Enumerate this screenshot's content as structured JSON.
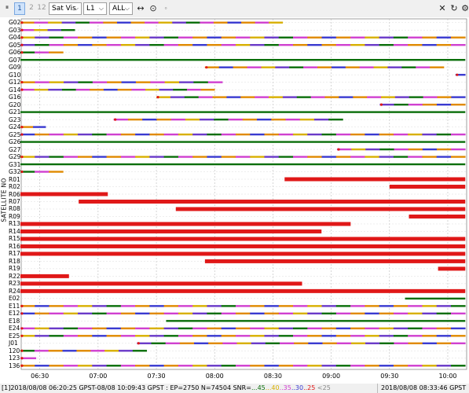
{
  "toolbar": {
    "pause": "⏸",
    "btn1": "1",
    "btn2": "2",
    "btn12": "12",
    "plot_type": "Sat Vis",
    "freq": "L1",
    "sat_filter": "ALL",
    "icons": [
      "fit-width-icon",
      "center-target-icon",
      "dot-icon",
      "close-icon",
      "refresh-icon",
      "gear-icon"
    ]
  },
  "chart": {
    "ylabel": "SATELLITE NO",
    "x_ticks": [
      "06:30",
      "07:00",
      "07:30",
      "08:00",
      "08:30",
      "09:00",
      "09:30",
      "10:00"
    ],
    "satellites": [
      "G02",
      "G03",
      "G04",
      "G05",
      "G06",
      "G07",
      "G09",
      "G10",
      "G12",
      "G14",
      "G16",
      "G20",
      "G21",
      "G23",
      "G24",
      "G25",
      "G26",
      "G27",
      "G29",
      "G31",
      "G32",
      "R01",
      "R02",
      "R06",
      "R07",
      "R08",
      "R09",
      "R13",
      "R14",
      "R15",
      "R16",
      "R17",
      "R18",
      "R19",
      "R22",
      "R23",
      "R24",
      "E02",
      "E11",
      "E12",
      "E18",
      "E24",
      "E25",
      "J01",
      "120",
      "123",
      "136"
    ]
  },
  "chart_data": {
    "type": "timeline",
    "x_range": [
      "06:20:25",
      "10:09:43"
    ],
    "rows": [
      {
        "sat": "G02",
        "segments": [
          [
            "06:20",
            "08:35"
          ]
        ],
        "color": "mixed"
      },
      {
        "sat": "G03",
        "segments": [
          [
            "06:20",
            "06:48"
          ]
        ],
        "color": "mixed"
      },
      {
        "sat": "G04",
        "segments": [
          [
            "06:20",
            "10:09"
          ]
        ],
        "color": "mixed"
      },
      {
        "sat": "G05",
        "segments": [
          [
            "06:20",
            "10:09"
          ]
        ],
        "color": "mixed"
      },
      {
        "sat": "G06",
        "segments": [
          [
            "06:20",
            "06:42"
          ]
        ],
        "color": "mixed"
      },
      {
        "sat": "G07",
        "segments": [
          [
            "06:20",
            "10:09"
          ]
        ],
        "color": "green"
      },
      {
        "sat": "G09",
        "segments": [
          [
            "07:55",
            "09:58"
          ]
        ],
        "color": "mixed"
      },
      {
        "sat": "G10",
        "segments": [
          [
            "10:04",
            "10:09"
          ]
        ],
        "color": "mixed"
      },
      {
        "sat": "G12",
        "segments": [
          [
            "06:20",
            "08:04"
          ]
        ],
        "color": "mixed"
      },
      {
        "sat": "G14",
        "segments": [
          [
            "06:20",
            "08:00"
          ]
        ],
        "color": "mixed"
      },
      {
        "sat": "G16",
        "segments": [
          [
            "07:30",
            "10:09"
          ]
        ],
        "color": "mixed"
      },
      {
        "sat": "G20",
        "segments": [
          [
            "09:25",
            "10:09"
          ]
        ],
        "color": "mixed"
      },
      {
        "sat": "G21",
        "segments": [
          [
            "06:20",
            "10:09"
          ]
        ],
        "color": "green"
      },
      {
        "sat": "G23",
        "segments": [
          [
            "07:08",
            "09:06"
          ]
        ],
        "color": "mixed"
      },
      {
        "sat": "G24",
        "segments": [
          [
            "06:20",
            "06:33"
          ]
        ],
        "color": "mixed"
      },
      {
        "sat": "G25",
        "segments": [
          [
            "06:20",
            "10:09"
          ]
        ],
        "color": "mixed"
      },
      {
        "sat": "G26",
        "segments": [
          [
            "06:20",
            "10:09"
          ]
        ],
        "color": "green"
      },
      {
        "sat": "G27",
        "segments": [
          [
            "09:03",
            "10:09"
          ]
        ],
        "color": "mixed"
      },
      {
        "sat": "G29",
        "segments": [
          [
            "06:20",
            "10:09"
          ]
        ],
        "color": "mixed"
      },
      {
        "sat": "G31",
        "segments": [
          [
            "06:20",
            "10:09"
          ]
        ],
        "color": "green"
      },
      {
        "sat": "G32",
        "segments": [
          [
            "06:20",
            "06:42"
          ]
        ],
        "color": "mixed"
      },
      {
        "sat": "R01",
        "segments": [
          [
            "08:36",
            "10:09"
          ]
        ],
        "color": "red"
      },
      {
        "sat": "R02",
        "segments": [
          [
            "09:30",
            "10:09"
          ]
        ],
        "color": "red"
      },
      {
        "sat": "R06",
        "segments": [
          [
            "06:20",
            "07:05"
          ]
        ],
        "color": "red"
      },
      {
        "sat": "R07",
        "segments": [
          [
            "06:50",
            "10:09"
          ]
        ],
        "color": "red"
      },
      {
        "sat": "R08",
        "segments": [
          [
            "07:40",
            "10:09"
          ]
        ],
        "color": "red"
      },
      {
        "sat": "R09",
        "segments": [
          [
            "09:40",
            "10:09"
          ]
        ],
        "color": "red"
      },
      {
        "sat": "R13",
        "segments": [
          [
            "06:20",
            "09:10"
          ]
        ],
        "color": "red"
      },
      {
        "sat": "R14",
        "segments": [
          [
            "06:20",
            "08:55"
          ]
        ],
        "color": "red"
      },
      {
        "sat": "R15",
        "segments": [
          [
            "06:20",
            "10:09"
          ]
        ],
        "color": "red"
      },
      {
        "sat": "R16",
        "segments": [
          [
            "06:20",
            "10:09"
          ]
        ],
        "color": "red"
      },
      {
        "sat": "R17",
        "segments": [
          [
            "06:20",
            "10:09"
          ]
        ],
        "color": "red"
      },
      {
        "sat": "R18",
        "segments": [
          [
            "07:55",
            "10:09"
          ]
        ],
        "color": "red"
      },
      {
        "sat": "R19",
        "segments": [
          [
            "09:55",
            "10:09"
          ]
        ],
        "color": "red"
      },
      {
        "sat": "R22",
        "segments": [
          [
            "06:20",
            "06:45"
          ]
        ],
        "color": "red"
      },
      {
        "sat": "R23",
        "segments": [
          [
            "06:20",
            "08:45"
          ]
        ],
        "color": "red"
      },
      {
        "sat": "R24",
        "segments": [
          [
            "06:20",
            "10:09"
          ]
        ],
        "color": "red"
      },
      {
        "sat": "E02",
        "segments": [
          [
            "09:38",
            "10:09"
          ]
        ],
        "color": "green"
      },
      {
        "sat": "E11",
        "segments": [
          [
            "06:20",
            "10:09"
          ]
        ],
        "color": "mixed"
      },
      {
        "sat": "E12",
        "segments": [
          [
            "06:20",
            "10:09"
          ]
        ],
        "color": "mixed"
      },
      {
        "sat": "E18",
        "segments": [
          [
            "07:35",
            "10:09"
          ]
        ],
        "color": "green"
      },
      {
        "sat": "E24",
        "segments": [
          [
            "06:20",
            "10:09"
          ]
        ],
        "color": "mixed"
      },
      {
        "sat": "E25",
        "segments": [
          [
            "06:20",
            "10:09"
          ]
        ],
        "color": "mixed"
      },
      {
        "sat": "J01",
        "segments": [
          [
            "07:20",
            "10:09"
          ]
        ],
        "color": "mixed"
      },
      {
        "sat": "120",
        "segments": [
          [
            "06:20",
            "07:25"
          ]
        ],
        "color": "mixed"
      },
      {
        "sat": "123",
        "segments": [
          [
            "06:20",
            "06:28"
          ]
        ],
        "color": "mixed"
      },
      {
        "sat": "136",
        "segments": [
          [
            "06:20",
            "10:09"
          ]
        ],
        "color": "mixed"
      }
    ]
  },
  "status": {
    "left_prefix": "[1]2018/08/08 06:20:25 GPST-08/08 10:09:43 GPST : EP=2750 N=74504 SNR=",
    "snr45": "...45",
    "snr40": "...40",
    "snr35": "..35",
    "snr30": "..30",
    "snr25": "..25",
    "snrlt25": "<25",
    "right": "2018/08/08 08:33:46 GPST"
  },
  "colors": {
    "green": "#0a6e0a",
    "yellow": "#d8b000",
    "orange": "#e08a00",
    "magenta": "#d040d0",
    "purple": "#6a3ac8",
    "blue": "#3a3ad0",
    "red": "#e01818",
    "gray": "#999999"
  }
}
